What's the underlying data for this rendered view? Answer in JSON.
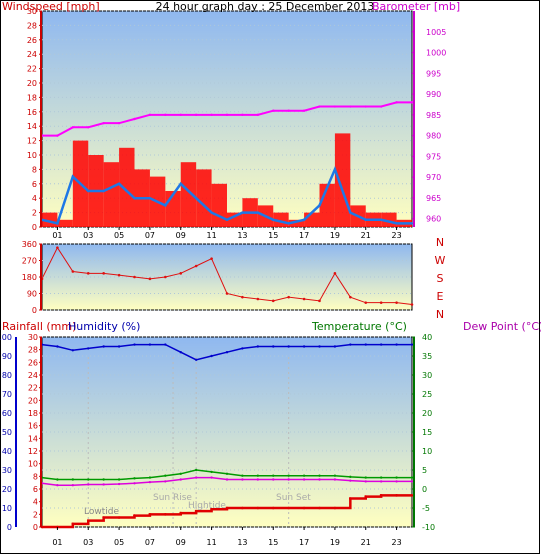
{
  "title": "24 hour graph day : 25 December 2013",
  "colors": {
    "wind": "#ff0000",
    "gust_fill": "#e00000",
    "wind_avg": "#1e78e6",
    "barometer": "#ff00ff",
    "direction": "#e01010",
    "rain": "#e00000",
    "humidity": "#0000cc",
    "temperature": "#009900",
    "dewpoint": "#dd00dd",
    "sky_top": "#8fb8f0",
    "sky_bottom": "#ffffc0"
  },
  "x_ticks": [
    "01",
    "03",
    "05",
    "07",
    "09",
    "11",
    "13",
    "15",
    "17",
    "19",
    "21",
    "23"
  ],
  "markers": [
    "Lowtide",
    "Sun Rise",
    "Hightide",
    "Sun Set"
  ],
  "chart_data": [
    {
      "type": "line",
      "name": "wind",
      "ylabel_left": "Windspeed [mph]",
      "ylabel_right": "Barometer [mb]",
      "left_ticks": [
        "0",
        "2",
        "4",
        "6",
        "8",
        "10",
        "12",
        "14",
        "16",
        "18",
        "20",
        "22",
        "24",
        "26",
        "28",
        "30"
      ],
      "right_ticks": [
        "960",
        "965",
        "970",
        "975",
        "980",
        "985",
        "990",
        "995",
        "1000",
        "1005"
      ],
      "ylim_left": [
        0,
        30
      ],
      "ylim_right": [
        958,
        1010
      ],
      "x": [
        0,
        1,
        2,
        3,
        4,
        5,
        6,
        7,
        8,
        9,
        10,
        11,
        12,
        13,
        14,
        15,
        16,
        17,
        18,
        19,
        20,
        21,
        22,
        23,
        24
      ],
      "series": [
        {
          "name": "Gust",
          "values": [
            2,
            1,
            12,
            10,
            9,
            11,
            8,
            7,
            5,
            9,
            8,
            6,
            2,
            4,
            3,
            2,
            1,
            2,
            6,
            13,
            3,
            2,
            2,
            1,
            1
          ]
        },
        {
          "name": "Average",
          "values": [
            1,
            0.5,
            7,
            5,
            5,
            6,
            4,
            4,
            3,
            6,
            4,
            2,
            1,
            2,
            2,
            1,
            0.5,
            1,
            3,
            8,
            2,
            1,
            1,
            0.5,
            0.5
          ]
        },
        {
          "name": "Barometer",
          "values": [
            980,
            980,
            982,
            982,
            983,
            983,
            984,
            985,
            985,
            985,
            985,
            985,
            985,
            985,
            985,
            986,
            986,
            986,
            987,
            987,
            987,
            987,
            987,
            988,
            988
          ]
        }
      ]
    },
    {
      "type": "scatter",
      "name": "direction",
      "left_ticks": [
        "0",
        "90",
        "180",
        "270",
        "360"
      ],
      "right_ticks": [
        "N",
        "W",
        "S",
        "E",
        "N"
      ],
      "ylim": [
        0,
        360
      ],
      "x": [
        0,
        1,
        2,
        3,
        4,
        5,
        6,
        7,
        8,
        9,
        10,
        11,
        12,
        13,
        14,
        15,
        16,
        17,
        18,
        19,
        20,
        21,
        22,
        23,
        24
      ],
      "values": [
        170,
        340,
        210,
        200,
        200,
        190,
        180,
        170,
        180,
        200,
        240,
        280,
        90,
        70,
        60,
        50,
        70,
        60,
        50,
        200,
        70,
        40,
        40,
        40,
        30
      ]
    },
    {
      "type": "line",
      "name": "lower",
      "ylabel_rain": "Rainfall (mm)",
      "ylabel_humidity": "Humidity (%)",
      "ylabel_temp": "Temperature (°C)",
      "ylabel_dew": "Dew Point (°C)",
      "rain_ticks": [
        "0",
        "2",
        "4",
        "6",
        "8",
        "10",
        "12",
        "14",
        "16",
        "18",
        "20",
        "22",
        "24",
        "26",
        "28",
        "30"
      ],
      "humidity_ticks": [
        "0",
        "10",
        "20",
        "30",
        "40",
        "50",
        "60",
        "70",
        "80",
        "90",
        "100"
      ],
      "temp_ticks": [
        "-10",
        "-5",
        "0",
        "5",
        "10",
        "15",
        "20",
        "25",
        "30",
        "35",
        "40"
      ],
      "ylim_rain": [
        0,
        30
      ],
      "ylim_humidity": [
        0,
        100
      ],
      "ylim_temp": [
        -10,
        40
      ],
      "x": [
        0,
        1,
        2,
        3,
        4,
        5,
        6,
        7,
        8,
        9,
        10,
        11,
        12,
        13,
        14,
        15,
        16,
        17,
        18,
        19,
        20,
        21,
        22,
        23,
        24
      ],
      "series": [
        {
          "name": "Rainfall",
          "values": [
            0,
            0,
            0.5,
            1,
            1.5,
            1.5,
            1.8,
            2,
            2,
            2.2,
            2.5,
            2.8,
            3,
            3,
            3,
            3,
            3,
            3,
            3,
            3,
            4.5,
            4.8,
            5,
            5,
            5
          ]
        },
        {
          "name": "Humidity",
          "values": [
            96,
            95,
            93,
            94,
            95,
            95,
            96,
            96,
            96,
            92,
            88,
            90,
            92,
            94,
            95,
            95,
            95,
            95,
            95,
            95,
            96,
            96,
            96,
            96,
            96
          ]
        },
        {
          "name": "Temperature",
          "values": [
            3,
            2.5,
            2.5,
            2.5,
            2.5,
            2.5,
            2.8,
            3,
            3.5,
            4,
            5,
            4.5,
            4,
            3.5,
            3.5,
            3.5,
            3.5,
            3.5,
            3.5,
            3.5,
            3.2,
            3,
            3,
            3,
            3
          ]
        },
        {
          "name": "Dew Point",
          "values": [
            1.5,
            1,
            1,
            1.2,
            1.2,
            1.3,
            1.5,
            1.8,
            2,
            2.5,
            3,
            3,
            2.5,
            2.5,
            2.5,
            2.5,
            2.5,
            2.5,
            2.5,
            2.5,
            2.2,
            2,
            2,
            2,
            2
          ]
        }
      ]
    }
  ]
}
